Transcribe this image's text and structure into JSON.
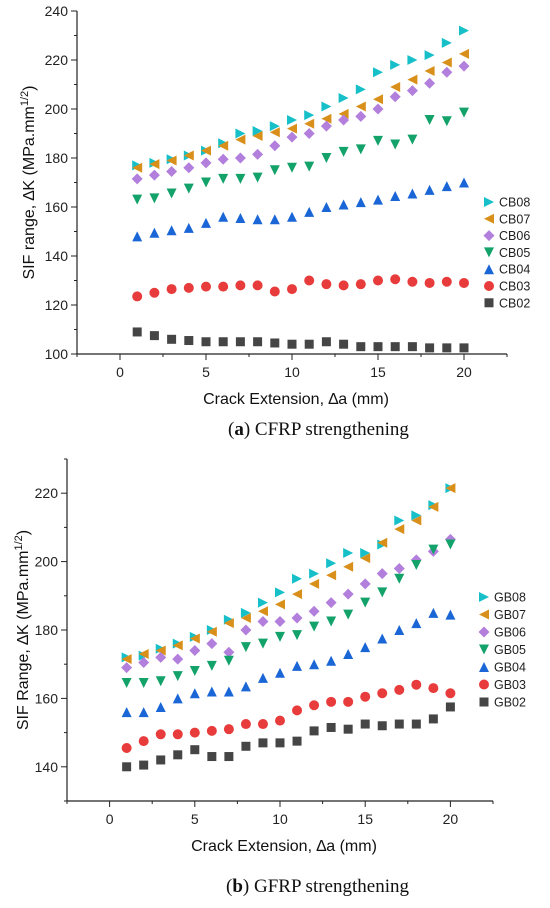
{
  "captions": [
    {
      "prefix": "(",
      "letter": "a",
      "suffix": ") CFRP strengthening"
    },
    {
      "prefix": "(",
      "letter": "b",
      "suffix": ") GFRP strengthening"
    }
  ],
  "chart_data": [
    {
      "type": "scatter",
      "xlabel": "Crack Extension, ∆a (mm)",
      "ylabel_main": "SIF range, ∆K (MPa.mm",
      "ylabel_sup": "1/2",
      "ylabel_end": ")",
      "xlim": [
        -2.5,
        22.5
      ],
      "ylim": [
        100,
        240
      ],
      "xticks": [
        0,
        5,
        10,
        15,
        20
      ],
      "yticks": [
        100,
        120,
        140,
        160,
        180,
        200,
        220,
        240
      ],
      "legend_position": "right",
      "x": [
        1,
        2,
        3,
        4,
        5,
        6,
        7,
        8,
        9,
        10,
        11,
        12,
        13,
        14,
        15,
        16,
        17,
        18,
        19,
        20
      ],
      "series": [
        {
          "name": "CB08",
          "color": "#17c0c8",
          "marker": "triangle-right",
          "values": [
            177,
            178,
            179.5,
            181,
            183,
            186,
            190,
            191,
            193,
            195.5,
            197.5,
            201,
            204.5,
            208,
            215,
            218,
            220,
            222,
            227,
            232
          ]
        },
        {
          "name": "CB07",
          "color": "#d9901a",
          "marker": "triangle-left",
          "values": [
            176,
            177.5,
            179,
            181,
            183,
            185,
            187.5,
            189,
            190.5,
            192,
            194,
            196,
            198,
            201,
            204,
            209,
            212,
            215.5,
            219,
            222.5
          ]
        },
        {
          "name": "CB06",
          "color": "#b27fdc",
          "marker": "diamond",
          "values": [
            171.5,
            173,
            174.5,
            176,
            178,
            179.5,
            180,
            181.5,
            185,
            188.5,
            190,
            193,
            195.5,
            197,
            200,
            205,
            207.5,
            210.5,
            215,
            217.5
          ]
        },
        {
          "name": "CB05",
          "color": "#13a26a",
          "marker": "triangle-down",
          "values": [
            163,
            163.5,
            165.5,
            167.5,
            170,
            171.5,
            171.5,
            172,
            175,
            176,
            176.5,
            180,
            182.5,
            183.5,
            187,
            185.5,
            187.5,
            195.5,
            195,
            198.5
          ]
        },
        {
          "name": "CB04",
          "color": "#1a66d6",
          "marker": "triangle-up",
          "values": [
            148,
            149.5,
            150.5,
            151.5,
            153.5,
            156,
            155.5,
            155,
            155,
            156,
            158,
            160,
            161,
            162,
            163,
            164.5,
            165.5,
            167,
            168.5,
            170
          ]
        },
        {
          "name": "CB03",
          "color": "#e83b3b",
          "marker": "circle",
          "values": [
            123.5,
            125,
            126.5,
            127,
            127.5,
            127.5,
            128,
            128,
            125.5,
            126.5,
            130,
            128.5,
            128,
            128.5,
            130,
            130.5,
            129.5,
            129,
            129.5,
            129
          ]
        },
        {
          "name": "CB02",
          "color": "#454545",
          "marker": "square",
          "values": [
            109,
            107.5,
            106,
            105.5,
            105,
            105,
            105,
            105,
            104.5,
            104,
            104,
            105,
            104,
            103,
            103,
            103,
            103,
            102.5,
            102.5,
            102.5
          ]
        }
      ]
    },
    {
      "type": "scatter",
      "xlabel": "Crack Extension, ∆a (mm)",
      "ylabel_main": "SIF Range, ∆K (MPa.mm",
      "ylabel_sup": "1/2",
      "ylabel_end": ")",
      "xlim": [
        -2.5,
        22.5
      ],
      "ylim": [
        130,
        230
      ],
      "xticks": [
        0,
        5,
        10,
        15,
        20
      ],
      "yticks": [
        140,
        160,
        180,
        200,
        220
      ],
      "legend_position": "right",
      "x": [
        1,
        2,
        3,
        4,
        5,
        6,
        7,
        8,
        9,
        10,
        11,
        12,
        13,
        14,
        15,
        16,
        17,
        18,
        19,
        20
      ],
      "series": [
        {
          "name": "GB08",
          "color": "#17c0c8",
          "marker": "triangle-right",
          "values": [
            172,
            172.5,
            174.5,
            176,
            178,
            180,
            183,
            185,
            188,
            191,
            195,
            196.5,
            199.5,
            202.5,
            202.5,
            205,
            212,
            213.5,
            216.5,
            221.5
          ]
        },
        {
          "name": "GB07",
          "color": "#d9901a",
          "marker": "triangle-left",
          "values": [
            171.5,
            173,
            174,
            175.5,
            177.5,
            179.5,
            182,
            183.5,
            185.5,
            187.5,
            190.5,
            193.5,
            196,
            198.5,
            201,
            205.5,
            209.5,
            212,
            216,
            221.5
          ]
        },
        {
          "name": "GB06",
          "color": "#b27fdc",
          "marker": "diamond",
          "values": [
            169,
            170.5,
            172,
            171.5,
            174,
            176,
            173.5,
            180,
            182.5,
            182.5,
            183.5,
            185.5,
            188,
            190.5,
            193.5,
            196.5,
            198,
            200.5,
            203,
            206.5
          ]
        },
        {
          "name": "GB05",
          "color": "#13a26a",
          "marker": "triangle-down",
          "values": [
            164.5,
            164.5,
            165,
            166.5,
            168,
            169.5,
            171,
            175,
            176,
            178,
            178.5,
            181,
            182.5,
            184.5,
            188,
            191,
            195,
            199,
            203.5,
            205
          ]
        },
        {
          "name": "GB04",
          "color": "#1a66d6",
          "marker": "triangle-up",
          "values": [
            156,
            156,
            157.5,
            160,
            161.5,
            162,
            162,
            163.5,
            166,
            167.5,
            169.5,
            170,
            171,
            173,
            175,
            177.5,
            180,
            182,
            185,
            184.5
          ]
        },
        {
          "name": "GB03",
          "color": "#e83b3b",
          "marker": "circle",
          "values": [
            145.5,
            147.5,
            149.5,
            149.5,
            150,
            150.5,
            151,
            152.5,
            152.5,
            153.5,
            156.5,
            158,
            159,
            159,
            160.5,
            161.5,
            162.5,
            164,
            163,
            161.5
          ]
        },
        {
          "name": "GB02",
          "color": "#454545",
          "marker": "square",
          "values": [
            140,
            140.5,
            142,
            143.5,
            145,
            143,
            143,
            146,
            147,
            147,
            147.5,
            150.5,
            151.5,
            151,
            152.5,
            152,
            152.5,
            152.5,
            154,
            157.5
          ]
        }
      ]
    }
  ]
}
